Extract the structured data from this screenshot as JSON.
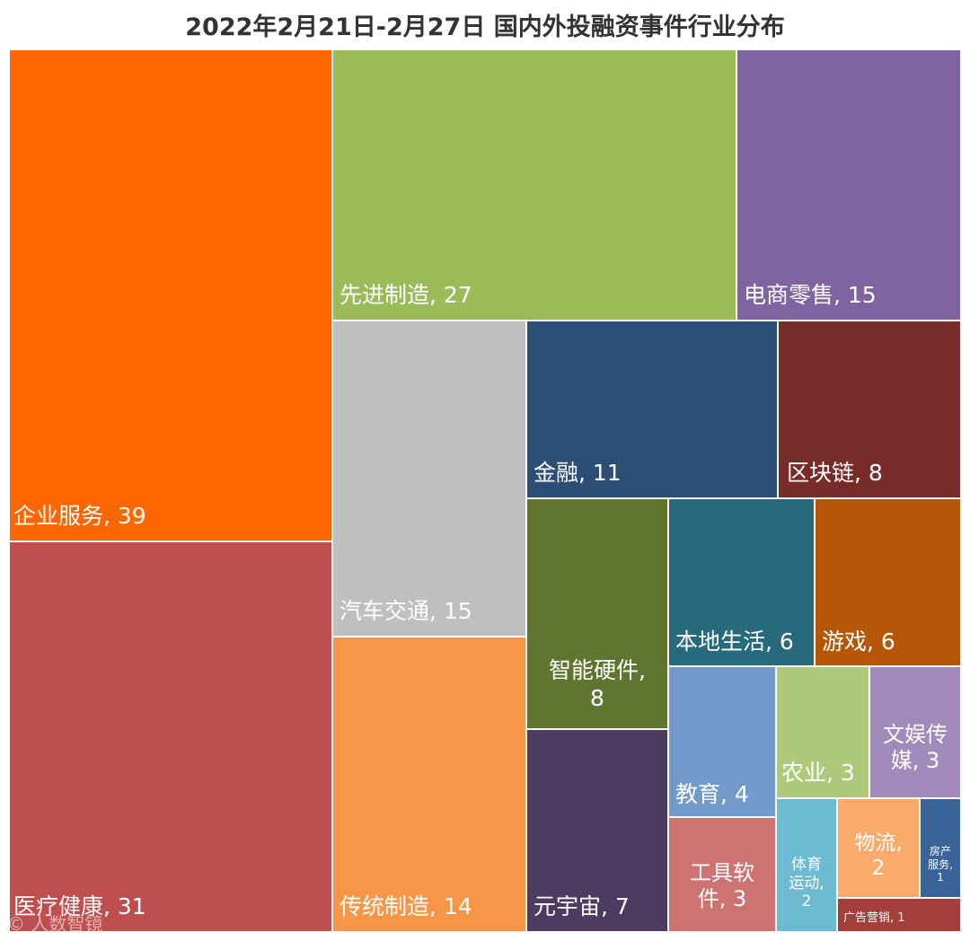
{
  "chart_data": {
    "type": "treemap",
    "title": "2022年2月21日-2月27日 国内外投融资事件行业分布",
    "unit": "投融资事件数",
    "items": [
      {
        "name": "企业服务",
        "value": 39,
        "label": "企业服务, 39",
        "color": "#FF6600"
      },
      {
        "name": "医疗健康",
        "value": 31,
        "label": "医疗健康, 31",
        "color": "#BF4E4E"
      },
      {
        "name": "先进制造",
        "value": 27,
        "label": "先进制造, 27",
        "color": "#9BBB59"
      },
      {
        "name": "电商零售",
        "value": 15,
        "label": "电商零售, 15",
        "color": "#8064A2"
      },
      {
        "name": "汽车交通",
        "value": 15,
        "label": "汽车交通, 15",
        "color": "#BFBFBF"
      },
      {
        "name": "传统制造",
        "value": 14,
        "label": "传统制造, 14",
        "color": "#F79646"
      },
      {
        "name": "金融",
        "value": 11,
        "label": "金融, 11",
        "color": "#2C4D75"
      },
      {
        "name": "区块链",
        "value": 8,
        "label": "区块链, 8",
        "color": "#772C2A"
      },
      {
        "name": "智能硬件",
        "value": 8,
        "label": "智能硬件,\n8",
        "color": "#5F7530"
      },
      {
        "name": "元宇宙",
        "value": 7,
        "label": "元宇宙, 7",
        "color": "#4D3B62"
      },
      {
        "name": "本地生活",
        "value": 6,
        "label": "本地生活, 6",
        "color": "#276A7C"
      },
      {
        "name": "游戏",
        "value": 6,
        "label": "游戏, 6",
        "color": "#B65708"
      },
      {
        "name": "教育",
        "value": 4,
        "label": "教育, 4",
        "color": "#729ACA"
      },
      {
        "name": "工具软件",
        "value": 3,
        "label": "工具软\n件, 3",
        "color": "#CD7371"
      },
      {
        "name": "农业",
        "value": 3,
        "label": "农业, 3",
        "color": "#AFC97A"
      },
      {
        "name": "文娱传媒",
        "value": 3,
        "label": "文娱传\n媒, 3",
        "color": "#A18BBB"
      },
      {
        "name": "体育运动",
        "value": 2,
        "label": "体育\n运动,\n2",
        "color": "#6DBBD1"
      },
      {
        "name": "物流",
        "value": 2,
        "label": "物流,\n2",
        "color": "#F9AB6B"
      },
      {
        "name": "房产服务",
        "value": 1,
        "label": "房产\n服务,\n1",
        "color": "#3A6398"
      },
      {
        "name": "广告营销",
        "value": 1,
        "label": "广告营销, 1",
        "color": "#A33E3B"
      }
    ]
  },
  "watermark": "© 人数智镜"
}
